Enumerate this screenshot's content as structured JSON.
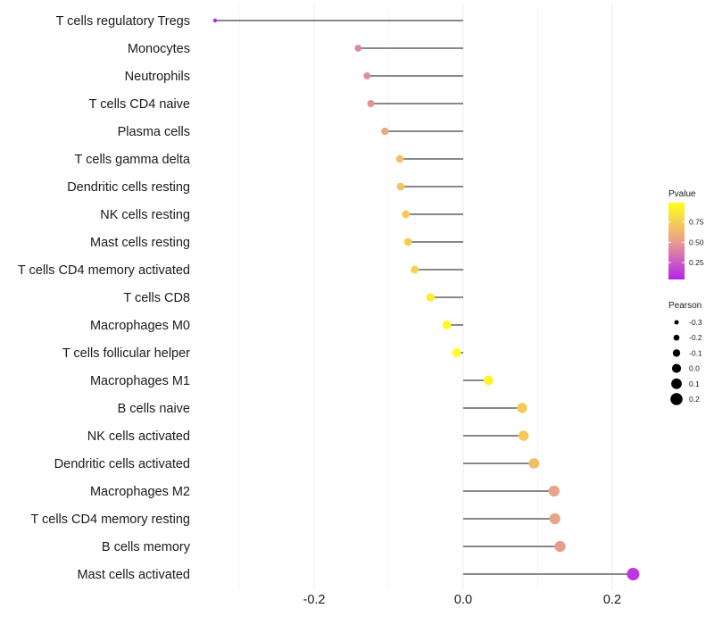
{
  "chart_data": {
    "type": "lollipop",
    "title": "",
    "xlabel": "",
    "ylabel": "",
    "xlim": [
      -0.4,
      0.25
    ],
    "x_ticks": [
      "-0.2",
      "0.0",
      "0.2"
    ],
    "x_tick_values": [
      -0.2,
      0.0,
      0.2
    ],
    "grid": true,
    "categories": [
      "T cells regulatory  Tregs",
      "Monocytes",
      "Neutrophils",
      "T cells CD4 naive",
      "Plasma cells",
      "T cells gamma delta",
      "Dendritic cells resting",
      "NK cells resting",
      "Mast cells resting",
      "T cells CD4 memory activated",
      "T cells CD8",
      "Macrophages M0",
      "T cells follicular helper",
      "Macrophages M1",
      "B cells naive",
      "NK cells activated",
      "Dendritic cells activated",
      "Macrophages M2",
      "T cells CD4 memory resting",
      "B cells memory",
      "Mast cells activated"
    ],
    "pearson": [
      -0.333,
      -0.141,
      -0.129,
      -0.124,
      -0.105,
      -0.085,
      -0.084,
      -0.077,
      -0.074,
      -0.065,
      -0.044,
      -0.022,
      -0.009,
      0.034,
      0.079,
      0.081,
      0.095,
      0.122,
      0.123,
      0.13,
      0.228
    ],
    "pvalue": [
      0.04,
      0.42,
      0.45,
      0.46,
      0.55,
      0.68,
      0.69,
      0.72,
      0.73,
      0.77,
      0.9,
      0.97,
      0.99,
      0.93,
      0.73,
      0.72,
      0.66,
      0.53,
      0.53,
      0.5,
      0.11
    ],
    "legend_position": "right",
    "color_legend": {
      "title": "Pvalue",
      "ticks": [
        "0.75",
        "0.50",
        "0.25"
      ],
      "tick_values": [
        0.75,
        0.5,
        0.25
      ],
      "range": [
        0.04,
        0.99
      ],
      "low_color": "#b522ee",
      "mid_color": "#eaa08b",
      "high_color": "#ffff1c"
    },
    "size_legend": {
      "title": "Pearson",
      "labels": [
        "-0.3",
        "-0.2",
        "-0.1",
        "0.0",
        "0.1",
        "0.2"
      ],
      "values": [
        -0.3,
        -0.2,
        -0.1,
        0.0,
        0.1,
        0.2
      ]
    }
  }
}
